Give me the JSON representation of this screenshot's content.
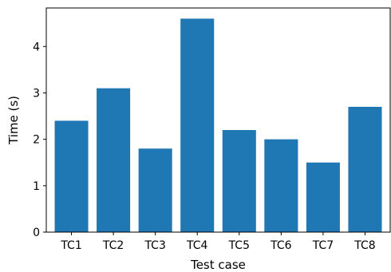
{
  "chart_data": {
    "type": "bar",
    "categories": [
      "TC1",
      "TC2",
      "TC3",
      "TC4",
      "TC5",
      "TC6",
      "TC7",
      "TC8"
    ],
    "values": [
      2.4,
      3.1,
      1.8,
      4.6,
      2.2,
      2.0,
      1.5,
      2.7
    ],
    "xlabel": "Test case",
    "ylabel": "Time (s)",
    "ylim": [
      0,
      4.83
    ],
    "yticks": [
      0,
      1,
      2,
      3,
      4
    ],
    "grid": false,
    "bar_color": "#1f77b4"
  }
}
